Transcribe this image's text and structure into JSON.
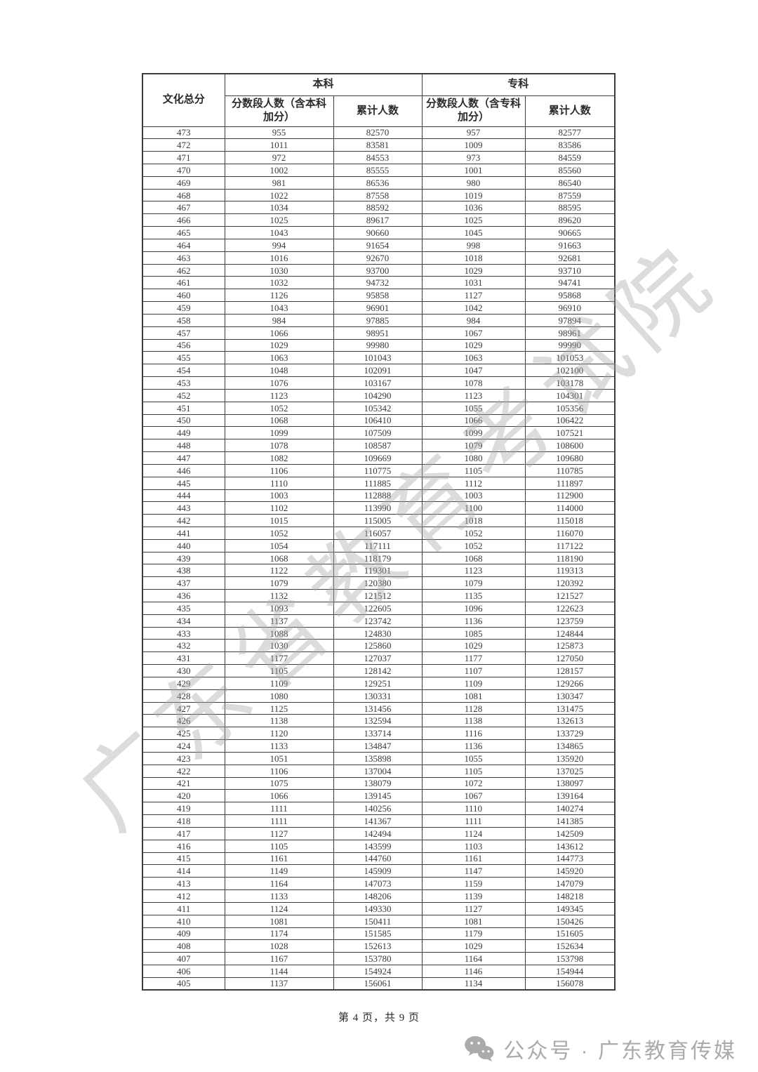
{
  "watermark": {
    "text": "广东省教育考试院"
  },
  "table": {
    "header": {
      "score": "文化总分",
      "benke_group": "本科",
      "zhuanke_group": "专科",
      "benke_seg": "分数段人数（含本科加分）",
      "benke_cum": "累计人数",
      "zhuanke_seg": "分数段人数（含专科加分）",
      "zhuanke_cum": "累计人数"
    },
    "rows": [
      [
        473,
        955,
        82570,
        957,
        82577
      ],
      [
        472,
        1011,
        83581,
        1009,
        83586
      ],
      [
        471,
        972,
        84553,
        973,
        84559
      ],
      [
        470,
        1002,
        85555,
        1001,
        85560
      ],
      [
        469,
        981,
        86536,
        980,
        86540
      ],
      [
        468,
        1022,
        87558,
        1019,
        87559
      ],
      [
        467,
        1034,
        88592,
        1036,
        88595
      ],
      [
        466,
        1025,
        89617,
        1025,
        89620
      ],
      [
        465,
        1043,
        90660,
        1045,
        90665
      ],
      [
        464,
        994,
        91654,
        998,
        91663
      ],
      [
        463,
        1016,
        92670,
        1018,
        92681
      ],
      [
        462,
        1030,
        93700,
        1029,
        93710
      ],
      [
        461,
        1032,
        94732,
        1031,
        94741
      ],
      [
        460,
        1126,
        95858,
        1127,
        95868
      ],
      [
        459,
        1043,
        96901,
        1042,
        96910
      ],
      [
        458,
        984,
        97885,
        984,
        97894
      ],
      [
        457,
        1066,
        98951,
        1067,
        98961
      ],
      [
        456,
        1029,
        99980,
        1029,
        99990
      ],
      [
        455,
        1063,
        101043,
        1063,
        101053
      ],
      [
        454,
        1048,
        102091,
        1047,
        102100
      ],
      [
        453,
        1076,
        103167,
        1078,
        103178
      ],
      [
        452,
        1123,
        104290,
        1123,
        104301
      ],
      [
        451,
        1052,
        105342,
        1055,
        105356
      ],
      [
        450,
        1068,
        106410,
        1066,
        106422
      ],
      [
        449,
        1099,
        107509,
        1099,
        107521
      ],
      [
        448,
        1078,
        108587,
        1079,
        108600
      ],
      [
        447,
        1082,
        109669,
        1080,
        109680
      ],
      [
        446,
        1106,
        110775,
        1105,
        110785
      ],
      [
        445,
        1110,
        111885,
        1112,
        111897
      ],
      [
        444,
        1003,
        112888,
        1003,
        112900
      ],
      [
        443,
        1102,
        113990,
        1100,
        114000
      ],
      [
        442,
        1015,
        115005,
        1018,
        115018
      ],
      [
        441,
        1052,
        116057,
        1052,
        116070
      ],
      [
        440,
        1054,
        117111,
        1052,
        117122
      ],
      [
        439,
        1068,
        118179,
        1068,
        118190
      ],
      [
        438,
        1122,
        119301,
        1123,
        119313
      ],
      [
        437,
        1079,
        120380,
        1079,
        120392
      ],
      [
        436,
        1132,
        121512,
        1135,
        121527
      ],
      [
        435,
        1093,
        122605,
        1096,
        122623
      ],
      [
        434,
        1137,
        123742,
        1136,
        123759
      ],
      [
        433,
        1088,
        124830,
        1085,
        124844
      ],
      [
        432,
        1030,
        125860,
        1029,
        125873
      ],
      [
        431,
        1177,
        127037,
        1177,
        127050
      ],
      [
        430,
        1105,
        128142,
        1107,
        128157
      ],
      [
        429,
        1109,
        129251,
        1109,
        129266
      ],
      [
        428,
        1080,
        130331,
        1081,
        130347
      ],
      [
        427,
        1125,
        131456,
        1128,
        131475
      ],
      [
        426,
        1138,
        132594,
        1138,
        132613
      ],
      [
        425,
        1120,
        133714,
        1116,
        133729
      ],
      [
        424,
        1133,
        134847,
        1136,
        134865
      ],
      [
        423,
        1051,
        135898,
        1055,
        135920
      ],
      [
        422,
        1106,
        137004,
        1105,
        137025
      ],
      [
        421,
        1075,
        138079,
        1072,
        138097
      ],
      [
        420,
        1066,
        139145,
        1067,
        139164
      ],
      [
        419,
        1111,
        140256,
        1110,
        140274
      ],
      [
        418,
        1111,
        141367,
        1111,
        141385
      ],
      [
        417,
        1127,
        142494,
        1124,
        142509
      ],
      [
        416,
        1105,
        143599,
        1103,
        143612
      ],
      [
        415,
        1161,
        144760,
        1161,
        144773
      ],
      [
        414,
        1149,
        145909,
        1147,
        145920
      ],
      [
        413,
        1164,
        147073,
        1159,
        147079
      ],
      [
        412,
        1133,
        148206,
        1139,
        148218
      ],
      [
        411,
        1124,
        149330,
        1127,
        149345
      ],
      [
        410,
        1081,
        150411,
        1081,
        150426
      ],
      [
        409,
        1174,
        151585,
        1179,
        151605
      ],
      [
        408,
        1028,
        152613,
        1029,
        152634
      ],
      [
        407,
        1167,
        153780,
        1164,
        153798
      ],
      [
        406,
        1144,
        154924,
        1146,
        154944
      ],
      [
        405,
        1137,
        156061,
        1134,
        156078
      ]
    ]
  },
  "footer": {
    "page_text": "第 4 页，共 9 页"
  },
  "banner": {
    "icon": "wechat-icon",
    "text": "公众号 · 广东教育传媒"
  },
  "colors": {
    "border": "#3c3c3c",
    "text": "#303030",
    "watermark_gray": "#a8a8a8",
    "banner_gray": "#ababab"
  }
}
